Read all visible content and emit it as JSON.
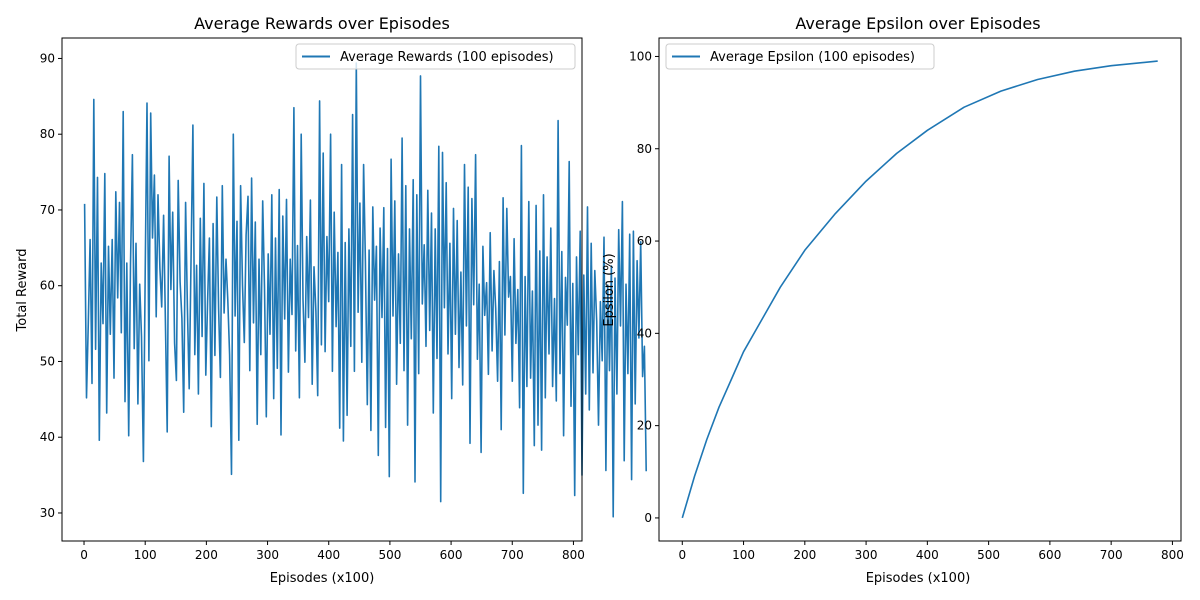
{
  "chart_data": [
    {
      "type": "line",
      "title": "Average Rewards over Episodes",
      "xlabel": "Episodes (x100)",
      "ylabel": "Total Reward",
      "xlim": [
        -36,
        814
      ],
      "ylim": [
        26.3,
        92.7
      ],
      "xticks": [
        0,
        100,
        200,
        300,
        400,
        500,
        600,
        700,
        800
      ],
      "yticks": [
        30,
        40,
        50,
        60,
        70,
        80,
        90
      ],
      "legend_position": "upper right",
      "grid": false,
      "series": [
        {
          "name": "Average Rewards (100 episodes)",
          "color": "#1f77b4",
          "x_start": 1,
          "x_step": 3,
          "values": [
            70.8,
            45.2,
            55.1,
            66.1,
            47.1,
            84.6,
            51.6,
            74.3,
            39.6,
            63.0,
            55.0,
            74.8,
            43.2,
            65.2,
            53.6,
            66.1,
            47.8,
            72.4,
            58.4,
            71.0,
            53.8,
            83.0,
            44.7,
            63.0,
            40.2,
            62.8,
            77.3,
            51.7,
            65.6,
            44.4,
            60.2,
            53.3,
            36.8,
            61.8,
            84.1,
            50.1,
            82.8,
            66.3,
            74.6,
            55.9,
            72.0,
            62.3,
            57.2,
            69.3,
            55.3,
            40.7,
            77.1,
            59.5,
            69.7,
            52.4,
            47.5,
            73.9,
            60.5,
            55.7,
            43.3,
            71.0,
            57.1,
            46.4,
            64.0,
            81.2,
            50.9,
            62.7,
            45.7,
            68.9,
            53.3,
            73.5,
            48.2,
            58.0,
            66.3,
            41.4,
            68.2,
            50.8,
            71.7,
            57.0,
            47.9,
            73.2,
            56.4,
            63.5,
            58.1,
            50.9,
            35.1,
            80.0,
            56.0,
            68.5,
            39.6,
            73.2,
            60.1,
            52.5,
            66.7,
            71.8,
            48.8,
            74.2,
            55.1,
            68.4,
            41.7,
            63.5,
            50.9,
            71.2,
            59.8,
            42.7,
            64.2,
            53.6,
            72.0,
            45.1,
            66.3,
            49.1,
            72.7,
            40.3,
            69.2,
            55.6,
            71.4,
            48.6,
            63.5,
            56.2,
            83.5,
            51.4,
            65.3,
            45.2,
            80.0,
            58.2,
            49.9,
            66.5,
            55.8,
            71.3,
            47.0,
            62.5,
            56.6,
            45.5,
            84.4,
            52.2,
            77.5,
            51.3,
            66.5,
            57.9,
            80.0,
            48.7,
            69.7,
            54.6,
            64.4,
            41.2,
            76.0,
            39.5,
            65.7,
            42.9,
            67.5,
            52.0,
            82.6,
            48.7,
            89.4,
            56.5,
            70.9,
            49.9,
            76.0,
            63.2,
            44.3,
            64.7,
            40.9,
            70.4,
            58.1,
            65.2,
            37.6,
            67.6,
            55.8,
            70.3,
            41.3,
            64.9,
            34.8,
            76.7,
            56.0,
            71.2,
            47.0,
            64.2,
            52.4,
            79.5,
            48.8,
            73.2,
            41.6,
            67.5,
            53.0,
            74.0,
            34.1,
            72.0,
            48.4,
            87.7,
            57.6,
            65.4,
            52.0,
            72.6,
            54.1,
            69.6,
            43.2,
            67.5,
            50.4,
            78.4,
            31.5,
            77.6,
            57.1,
            73.6,
            51.0,
            65.6,
            45.1,
            70.2,
            53.6,
            68.6,
            49.2,
            61.8,
            46.9,
            76.0,
            54.7,
            73.0,
            39.2,
            71.5,
            57.5,
            77.3,
            50.3,
            60.2,
            38.0,
            65.2,
            56.1,
            60.4,
            48.3,
            67.0,
            51.4,
            62.0,
            57.0,
            47.4,
            63.2,
            41.0,
            71.6,
            53.5,
            70.2,
            58.5,
            61.2,
            47.4,
            66.2,
            52.4,
            59.5,
            43.9,
            78.5,
            32.6,
            61.2,
            46.7,
            71.1,
            47.8,
            59.3,
            38.9,
            70.6,
            41.6,
            64.6,
            38.3,
            72.0,
            45.2,
            63.8,
            51.0,
            67.6,
            46.7,
            58.3,
            44.8,
            81.8,
            48.4,
            64.5,
            40.2,
            61.1,
            54.8,
            76.4,
            44.1,
            60.3,
            32.3,
            63.8,
            50.9,
            67.2,
            35.0,
            61.4,
            45.7,
            70.4,
            43.6,
            65.6,
            48.5,
            62.0,
            55.3,
            41.6,
            57.9,
            50.1,
            66.4,
            35.6,
            60.1,
            48.8,
            62.6,
            29.5,
            61.0,
            45.7,
            67.4,
            54.7,
            71.1,
            36.9,
            60.2,
            48.4,
            66.8,
            34.4,
            67.2,
            44.4,
            63.3,
            53.1,
            65.8,
            48.0,
            52.0,
            35.5
          ]
        }
      ]
    },
    {
      "type": "line",
      "title": "Average Epsilon over Episodes",
      "xlabel": "Episodes (x100)",
      "ylabel": "Epsilon (%)",
      "xlim": [
        -38,
        814
      ],
      "ylim": [
        -5,
        104
      ],
      "xticks": [
        0,
        100,
        200,
        300,
        400,
        500,
        600,
        700,
        800
      ],
      "yticks": [
        0,
        20,
        40,
        60,
        80,
        100
      ],
      "legend_position": "upper left",
      "grid": false,
      "series": [
        {
          "name": "Average Epsilon (100 episodes)",
          "color": "#1f77b4",
          "x": [
            0,
            20,
            40,
            60,
            80,
            100,
            130,
            160,
            200,
            250,
            300,
            350,
            400,
            460,
            520,
            580,
            640,
            700,
            776
          ],
          "values": [
            0,
            9,
            17,
            24,
            30,
            36,
            43,
            50,
            58,
            66,
            73,
            79,
            84,
            89,
            92.5,
            95,
            96.8,
            98,
            99
          ]
        }
      ]
    }
  ]
}
